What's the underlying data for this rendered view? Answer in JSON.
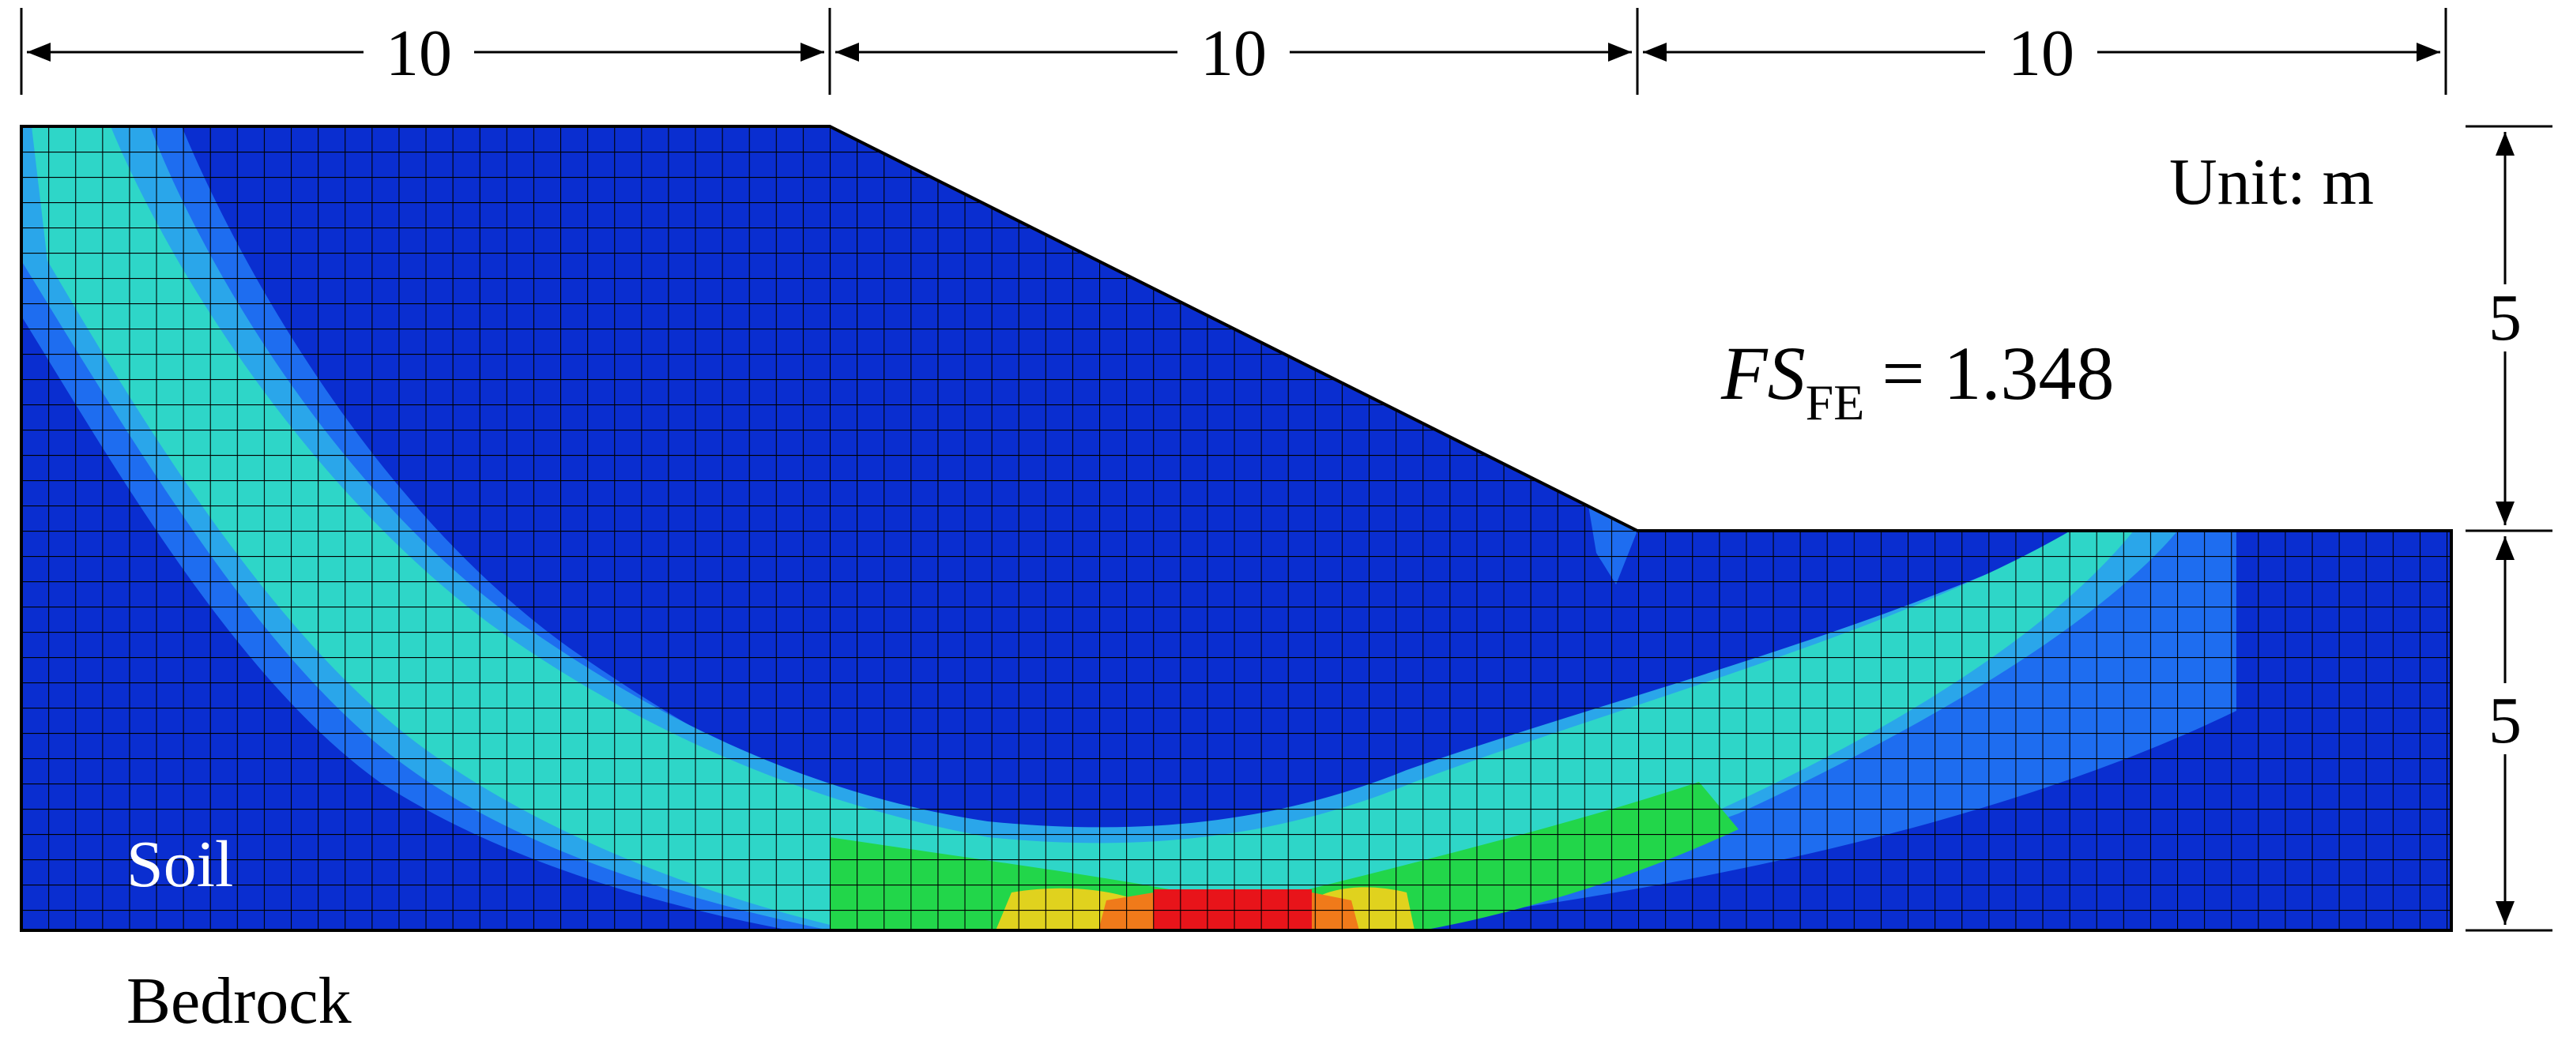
{
  "dimensions": {
    "top": [
      "10",
      "10",
      "10"
    ],
    "right": [
      "5",
      "5"
    ]
  },
  "labels": {
    "unit": "Unit: m",
    "soil": "Soil",
    "bedrock": "Bedrock"
  },
  "factor_of_safety": {
    "symbol": "FS",
    "subscript": "FE",
    "value": "= 1.348"
  },
  "colors": {
    "background_contour": "#0a2ed0",
    "band_outer": "#1e6df0",
    "band_mid": "#2aa6ea",
    "band_core": "#2ed6c8",
    "band_hot": "#22d64a",
    "band_yellow": "#e0d21e",
    "band_orange": "#f07a1a",
    "band_max": "#e8141a",
    "mesh": "#000000"
  }
}
